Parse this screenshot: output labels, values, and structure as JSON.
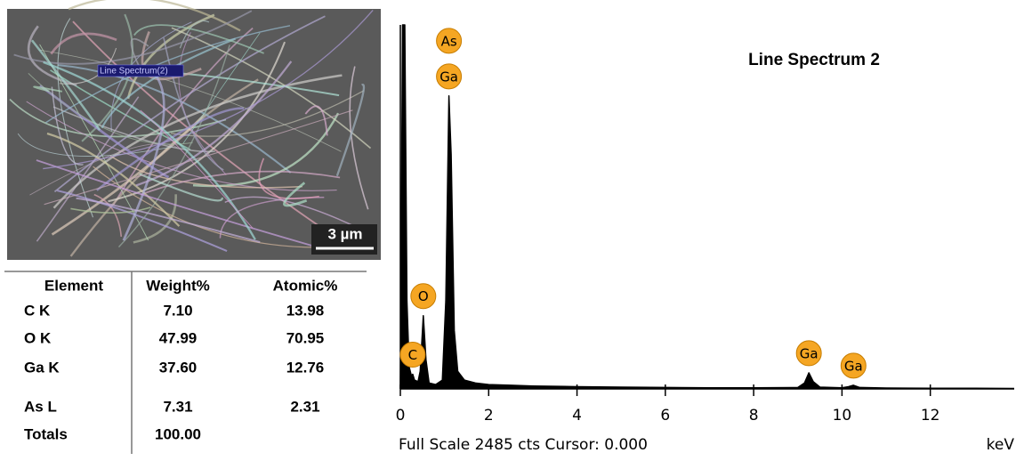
{
  "image": {
    "label": "Line Spectrum(2)",
    "scale_bar": "3 µm"
  },
  "table": {
    "header": [
      "Element",
      "Weight%",
      "Atomic%"
    ],
    "rows": [
      [
        "C K",
        "7.10",
        "13.98"
      ],
      [
        "O K",
        "47.99",
        "70.95"
      ],
      [
        "Ga K",
        "37.60",
        "12.76"
      ],
      [
        "As L",
        "7.31",
        "2.31"
      ],
      [
        "Totals",
        "100.00"
      ]
    ]
  },
  "chart_data": {
    "type": "area",
    "title": "Line Spectrum 2",
    "footnote": "Full Scale 2485 cts Cursor: 0.000",
    "x_label": "keV",
    "color": "#000000",
    "x": [
      0,
      0.05,
      0.1,
      0.15,
      0.2,
      0.25,
      0.28,
      0.32,
      0.4,
      0.45,
      0.52,
      0.58,
      0.65,
      0.8,
      0.95,
      1.03,
      1.1,
      1.15,
      1.22,
      1.3,
      1.45,
      1.7,
      2.0,
      2.5,
      3.0,
      4.0,
      5.0,
      6.0,
      7.0,
      8.0,
      9.0,
      9.15,
      9.25,
      9.35,
      9.5,
      10.0,
      10.15,
      10.26,
      10.4,
      11.0,
      12.0,
      13.0,
      13.9
    ],
    "values": [
      0,
      2485,
      2485,
      600,
      150,
      90,
      100,
      60,
      50,
      120,
      500,
      200,
      40,
      30,
      60,
      600,
      2000,
      1600,
      400,
      120,
      60,
      40,
      30,
      25,
      20,
      15,
      12,
      10,
      8,
      8,
      10,
      40,
      110,
      50,
      12,
      8,
      15,
      25,
      10,
      6,
      5,
      4,
      3
    ],
    "xlim": [
      0,
      13.9
    ],
    "ylim": [
      0,
      2485
    ],
    "xticks": [
      0,
      2,
      4,
      6,
      8,
      10,
      12
    ],
    "annotations": [
      {
        "label": "C",
        "x": 0.28
      },
      {
        "label": "O",
        "x": 0.52
      },
      {
        "label": "Ga",
        "x": 1.1
      },
      {
        "label": "As",
        "x": 1.1
      },
      {
        "label": "Ga",
        "x": 9.25
      },
      {
        "label": "Ga",
        "x": 10.26
      }
    ]
  }
}
